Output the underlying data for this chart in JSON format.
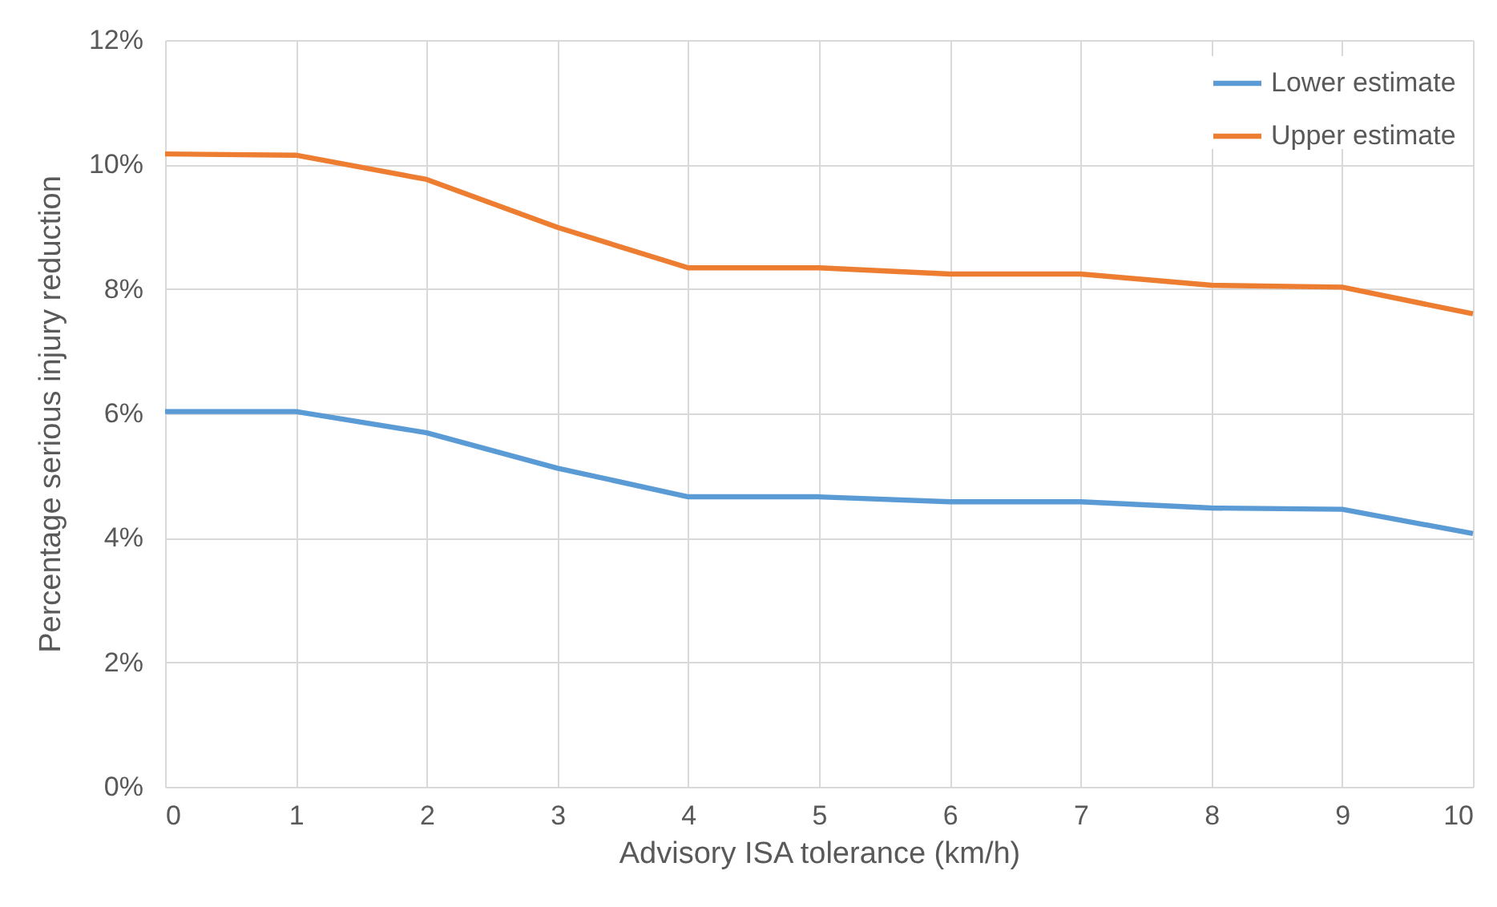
{
  "chart_data": {
    "type": "line",
    "xlabel": "Advisory ISA tolerance (km/h)",
    "ylabel": "Percentage serious injury reduction",
    "x": [
      0,
      1,
      2,
      3,
      4,
      5,
      6,
      7,
      8,
      9,
      10
    ],
    "series": [
      {
        "name": "Lower estimate",
        "color": "#5b9bd5",
        "values": [
          6.03,
          6.03,
          5.69,
          5.12,
          4.66,
          4.66,
          4.58,
          4.58,
          4.48,
          4.46,
          4.07
        ]
      },
      {
        "name": "Upper estimate",
        "color": "#ed7d31",
        "values": [
          10.17,
          10.15,
          9.76,
          8.99,
          8.34,
          8.34,
          8.24,
          8.24,
          8.06,
          8.03,
          7.6
        ]
      }
    ],
    "xlim": [
      0,
      10
    ],
    "xticks": [
      0,
      1,
      2,
      3,
      4,
      5,
      6,
      7,
      8,
      9,
      10
    ],
    "ylim": [
      0,
      12
    ],
    "yticks": [
      {
        "value": 0,
        "label": "0%"
      },
      {
        "value": 2,
        "label": "2%"
      },
      {
        "value": 4,
        "label": "4%"
      },
      {
        "value": 6,
        "label": "6%"
      },
      {
        "value": 8,
        "label": "8%"
      },
      {
        "value": 10,
        "label": "10%"
      },
      {
        "value": 12,
        "label": "12%"
      }
    ],
    "grid": true,
    "legend": "top right",
    "marker": "none",
    "line_style": "solid"
  }
}
